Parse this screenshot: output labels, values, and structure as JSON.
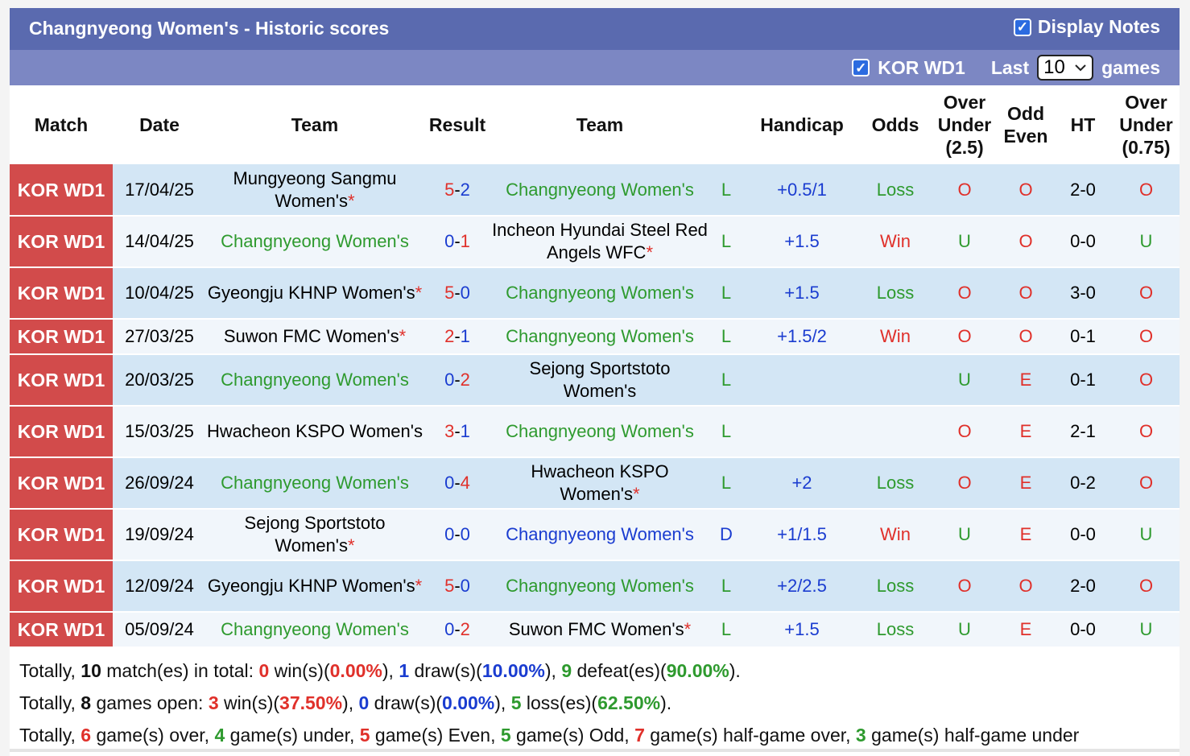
{
  "header": {
    "title": "Changnyeong Women's - Historic scores",
    "display_notes": "Display Notes",
    "league_filter": "KOR WD1",
    "last_label": "Last",
    "last_value": "10",
    "games_label": "games"
  },
  "columns": {
    "match": "Match",
    "date": "Date",
    "team_home": "Team",
    "result": "Result",
    "team_away": "Team",
    "handicap": "Handicap",
    "odds": "Odds",
    "ou25": "Over Under (2.5)",
    "oddeven": "Odd Even",
    "ht": "HT",
    "ou075": "Over Under (0.75)"
  },
  "rows": [
    {
      "league": "KOR WD1",
      "date": "17/04/25",
      "home": "Mungyeong Sangmu Women's",
      "home_star": "*",
      "home_color": "black",
      "hs": "5",
      "as": "2",
      "away": "Changnyeong Women's",
      "away_star": "",
      "away_color": "green",
      "wl": "L",
      "hcp": "+0.5/1",
      "odds": "Loss",
      "ou": "O",
      "oe": "O",
      "ht": "2-0",
      "ou2": "O"
    },
    {
      "league": "KOR WD1",
      "date": "14/04/25",
      "home": "Changnyeong Women's",
      "home_star": "",
      "home_color": "green",
      "hs": "0",
      "as": "1",
      "away": "Incheon Hyundai Steel Red Angels WFC",
      "away_star": "*",
      "away_color": "black",
      "wl": "L",
      "hcp": "+1.5",
      "odds": "Win",
      "ou": "U",
      "oe": "O",
      "ht": "0-0",
      "ou2": "U"
    },
    {
      "league": "KOR WD1",
      "date": "10/04/25",
      "home": "Gyeongju KHNP Women's",
      "home_star": "*",
      "home_color": "black",
      "hs": "5",
      "as": "0",
      "away": "Changnyeong Women's",
      "away_star": "",
      "away_color": "green",
      "wl": "L",
      "hcp": "+1.5",
      "odds": "Loss",
      "ou": "O",
      "oe": "O",
      "ht": "3-0",
      "ou2": "O"
    },
    {
      "league": "KOR WD1",
      "date": "27/03/25",
      "home": "Suwon FMC Women's",
      "home_star": "*",
      "home_color": "black",
      "hs": "2",
      "as": "1",
      "away": "Changnyeong Women's",
      "away_star": "",
      "away_color": "green",
      "wl": "L",
      "hcp": "+1.5/2",
      "odds": "Win",
      "ou": "O",
      "oe": "O",
      "ht": "0-1",
      "ou2": "O"
    },
    {
      "league": "KOR WD1",
      "date": "20/03/25",
      "home": "Changnyeong Women's",
      "home_star": "",
      "home_color": "green",
      "hs": "0",
      "as": "2",
      "away": "Sejong Sportstoto Women's",
      "away_star": "",
      "away_color": "black",
      "wl": "L",
      "hcp": "",
      "odds": "",
      "ou": "U",
      "oe": "E",
      "ht": "0-1",
      "ou2": "O"
    },
    {
      "league": "KOR WD1",
      "date": "15/03/25",
      "home": "Hwacheon KSPO Women's",
      "home_star": "",
      "home_color": "black",
      "hs": "3",
      "as": "1",
      "away": "Changnyeong Women's",
      "away_star": "",
      "away_color": "green",
      "wl": "L",
      "hcp": "",
      "odds": "",
      "ou": "O",
      "oe": "E",
      "ht": "2-1",
      "ou2": "O"
    },
    {
      "league": "KOR WD1",
      "date": "26/09/24",
      "home": "Changnyeong Women's",
      "home_star": "",
      "home_color": "green",
      "hs": "0",
      "as": "4",
      "away": "Hwacheon KSPO Women's",
      "away_star": "*",
      "away_color": "black",
      "wl": "L",
      "hcp": "+2",
      "odds": "Loss",
      "ou": "O",
      "oe": "E",
      "ht": "0-2",
      "ou2": "O"
    },
    {
      "league": "KOR WD1",
      "date": "19/09/24",
      "home": "Sejong Sportstoto Women's",
      "home_star": "*",
      "home_color": "black",
      "hs": "0",
      "as": "0",
      "away": "Changnyeong Women's",
      "away_star": "",
      "away_color": "blue",
      "wl": "D",
      "hcp": "+1/1.5",
      "odds": "Win",
      "ou": "U",
      "oe": "E",
      "ht": "0-0",
      "ou2": "U"
    },
    {
      "league": "KOR WD1",
      "date": "12/09/24",
      "home": "Gyeongju KHNP Women's",
      "home_star": "*",
      "home_color": "black",
      "hs": "5",
      "as": "0",
      "away": "Changnyeong Women's",
      "away_star": "",
      "away_color": "green",
      "wl": "L",
      "hcp": "+2/2.5",
      "odds": "Loss",
      "ou": "O",
      "oe": "O",
      "ht": "2-0",
      "ou2": "O"
    },
    {
      "league": "KOR WD1",
      "date": "05/09/24",
      "home": "Changnyeong Women's",
      "home_star": "",
      "home_color": "green",
      "hs": "0",
      "as": "2",
      "away": "Suwon FMC Women's",
      "away_star": "*",
      "away_color": "black",
      "wl": "L",
      "hcp": "+1.5",
      "odds": "Loss",
      "ou": "U",
      "oe": "E",
      "ht": "0-0",
      "ou2": "U"
    }
  ],
  "summary": {
    "line1": {
      "p1": "Totally, ",
      "total": "10",
      "p2": " match(es) in total: ",
      "wins": "0",
      "p3": " win(s)(",
      "win_pct": "0.00%",
      "p4": "), ",
      "draws": "1",
      "p5": " draw(s)(",
      "draw_pct": "10.00%",
      "p6": "), ",
      "defeats": "9",
      "p7": " defeat(es)(",
      "defeat_pct": "90.00%",
      "p8": ")."
    },
    "line2": {
      "p1": "Totally, ",
      "total": "8",
      "p2": " games open: ",
      "wins": "3",
      "p3": " win(s)(",
      "win_pct": "37.50%",
      "p4": "), ",
      "draws": "0",
      "p5": " draw(s)(",
      "draw_pct": "0.00%",
      "p6": "), ",
      "losses": "5",
      "p7": " loss(es)(",
      "loss_pct": "62.50%",
      "p8": ")."
    },
    "line3": {
      "p1": "Totally, ",
      "over": "6",
      "p2": " game(s) over, ",
      "under": "4",
      "p3": " game(s) under, ",
      "even": "5",
      "p4": " game(s) Even, ",
      "odd": "5",
      "p5": " game(s) Odd, ",
      "hg_over": "7",
      "p6": " game(s) half-game over, ",
      "hg_under": "3",
      "p7": " game(s) half-game under"
    }
  },
  "colors": {
    "header_bg": "#5a6aaf",
    "filter_bg": "#7c87c3",
    "league_bg": "#d24b4b",
    "win": "#e0302a",
    "loss": "#2e9a2e",
    "draw": "#1a3cd0"
  }
}
